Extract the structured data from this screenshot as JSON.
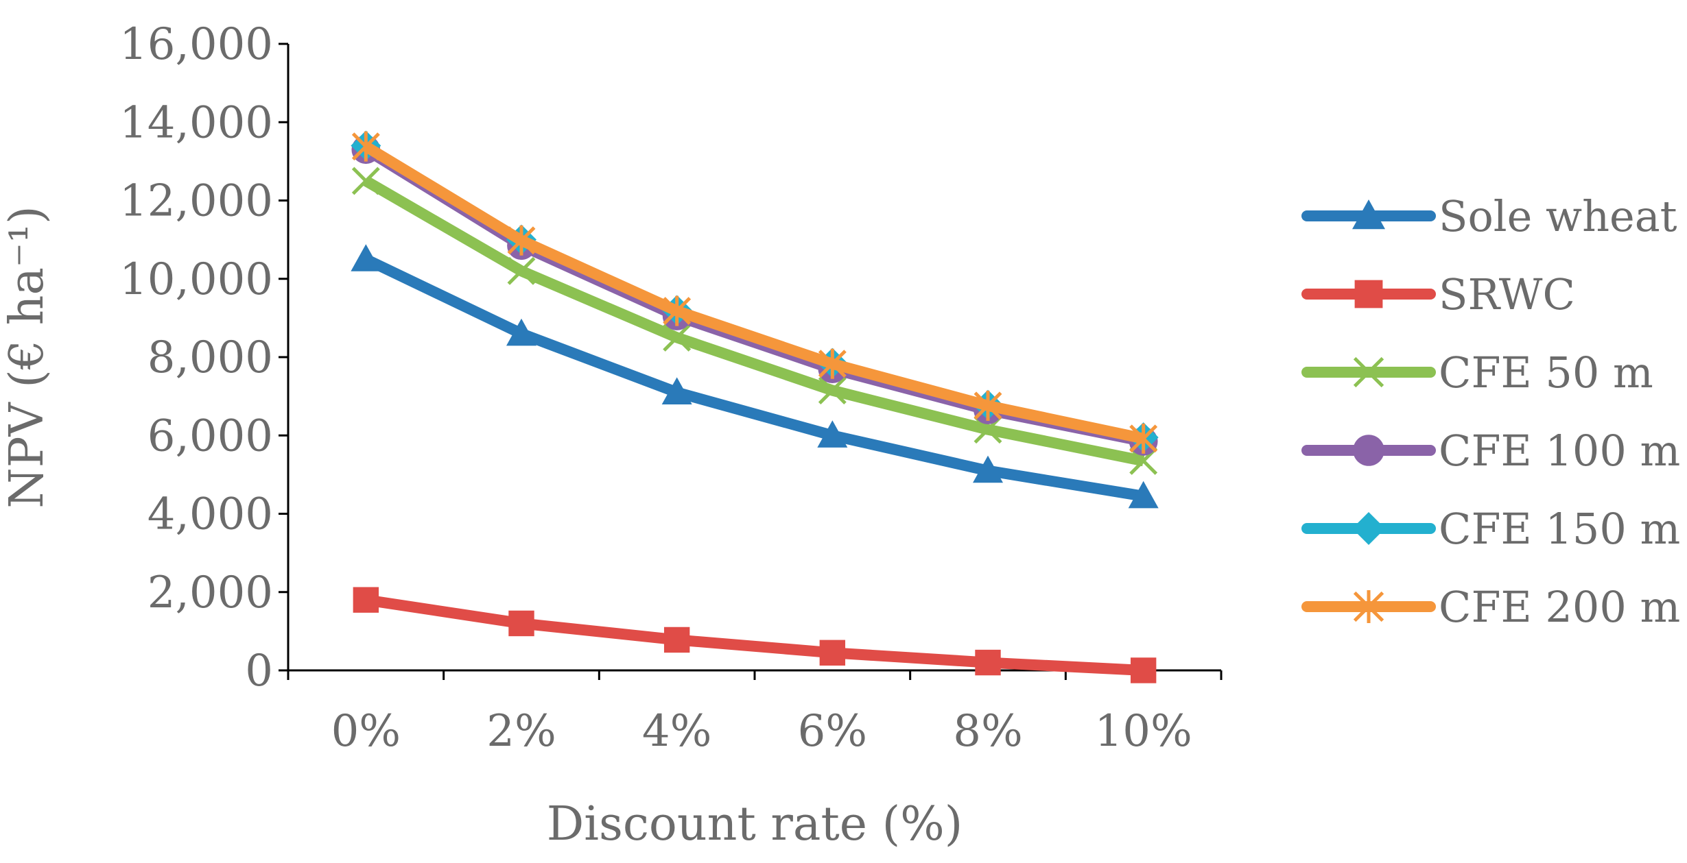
{
  "chart_data": {
    "type": "line",
    "title": "",
    "xlabel": "Discount rate (%)",
    "ylabel": "NPV (€ ha⁻¹)",
    "categories": [
      "0%",
      "2%",
      "4%",
      "6%",
      "8%",
      "10%"
    ],
    "ylim": [
      0,
      16000
    ],
    "yticks": [
      "0",
      "2,000",
      "4,000",
      "6,000",
      "8,000",
      "10,000",
      "12,000",
      "14,000",
      "16,000"
    ],
    "grid": false,
    "legend_position": "right",
    "series": [
      {
        "name": "Sole wheat",
        "color": "#2a7ab9",
        "marker": "triangle",
        "values": [
          10500,
          8600,
          7100,
          6000,
          5100,
          4450
        ]
      },
      {
        "name": "SRWC",
        "color": "#e04c47",
        "marker": "square",
        "values": [
          1800,
          1200,
          780,
          450,
          200,
          0
        ]
      },
      {
        "name": "CFE 50 m",
        "color": "#8cc152",
        "marker": "x",
        "values": [
          12500,
          10200,
          8500,
          7150,
          6150,
          5350
        ]
      },
      {
        "name": "CFE 100 m",
        "color": "#8a63a8",
        "marker": "circle",
        "values": [
          13300,
          10850,
          9050,
          7700,
          6650,
          5850
        ]
      },
      {
        "name": "CFE 150 m",
        "color": "#23b0cf",
        "marker": "diamond",
        "values": [
          13400,
          11000,
          9200,
          7850,
          6780,
          5950
        ]
      },
      {
        "name": "CFE 200 m",
        "color": "#f5963b",
        "marker": "star",
        "values": [
          13380,
          10980,
          9180,
          7830,
          6760,
          5920
        ]
      }
    ]
  }
}
